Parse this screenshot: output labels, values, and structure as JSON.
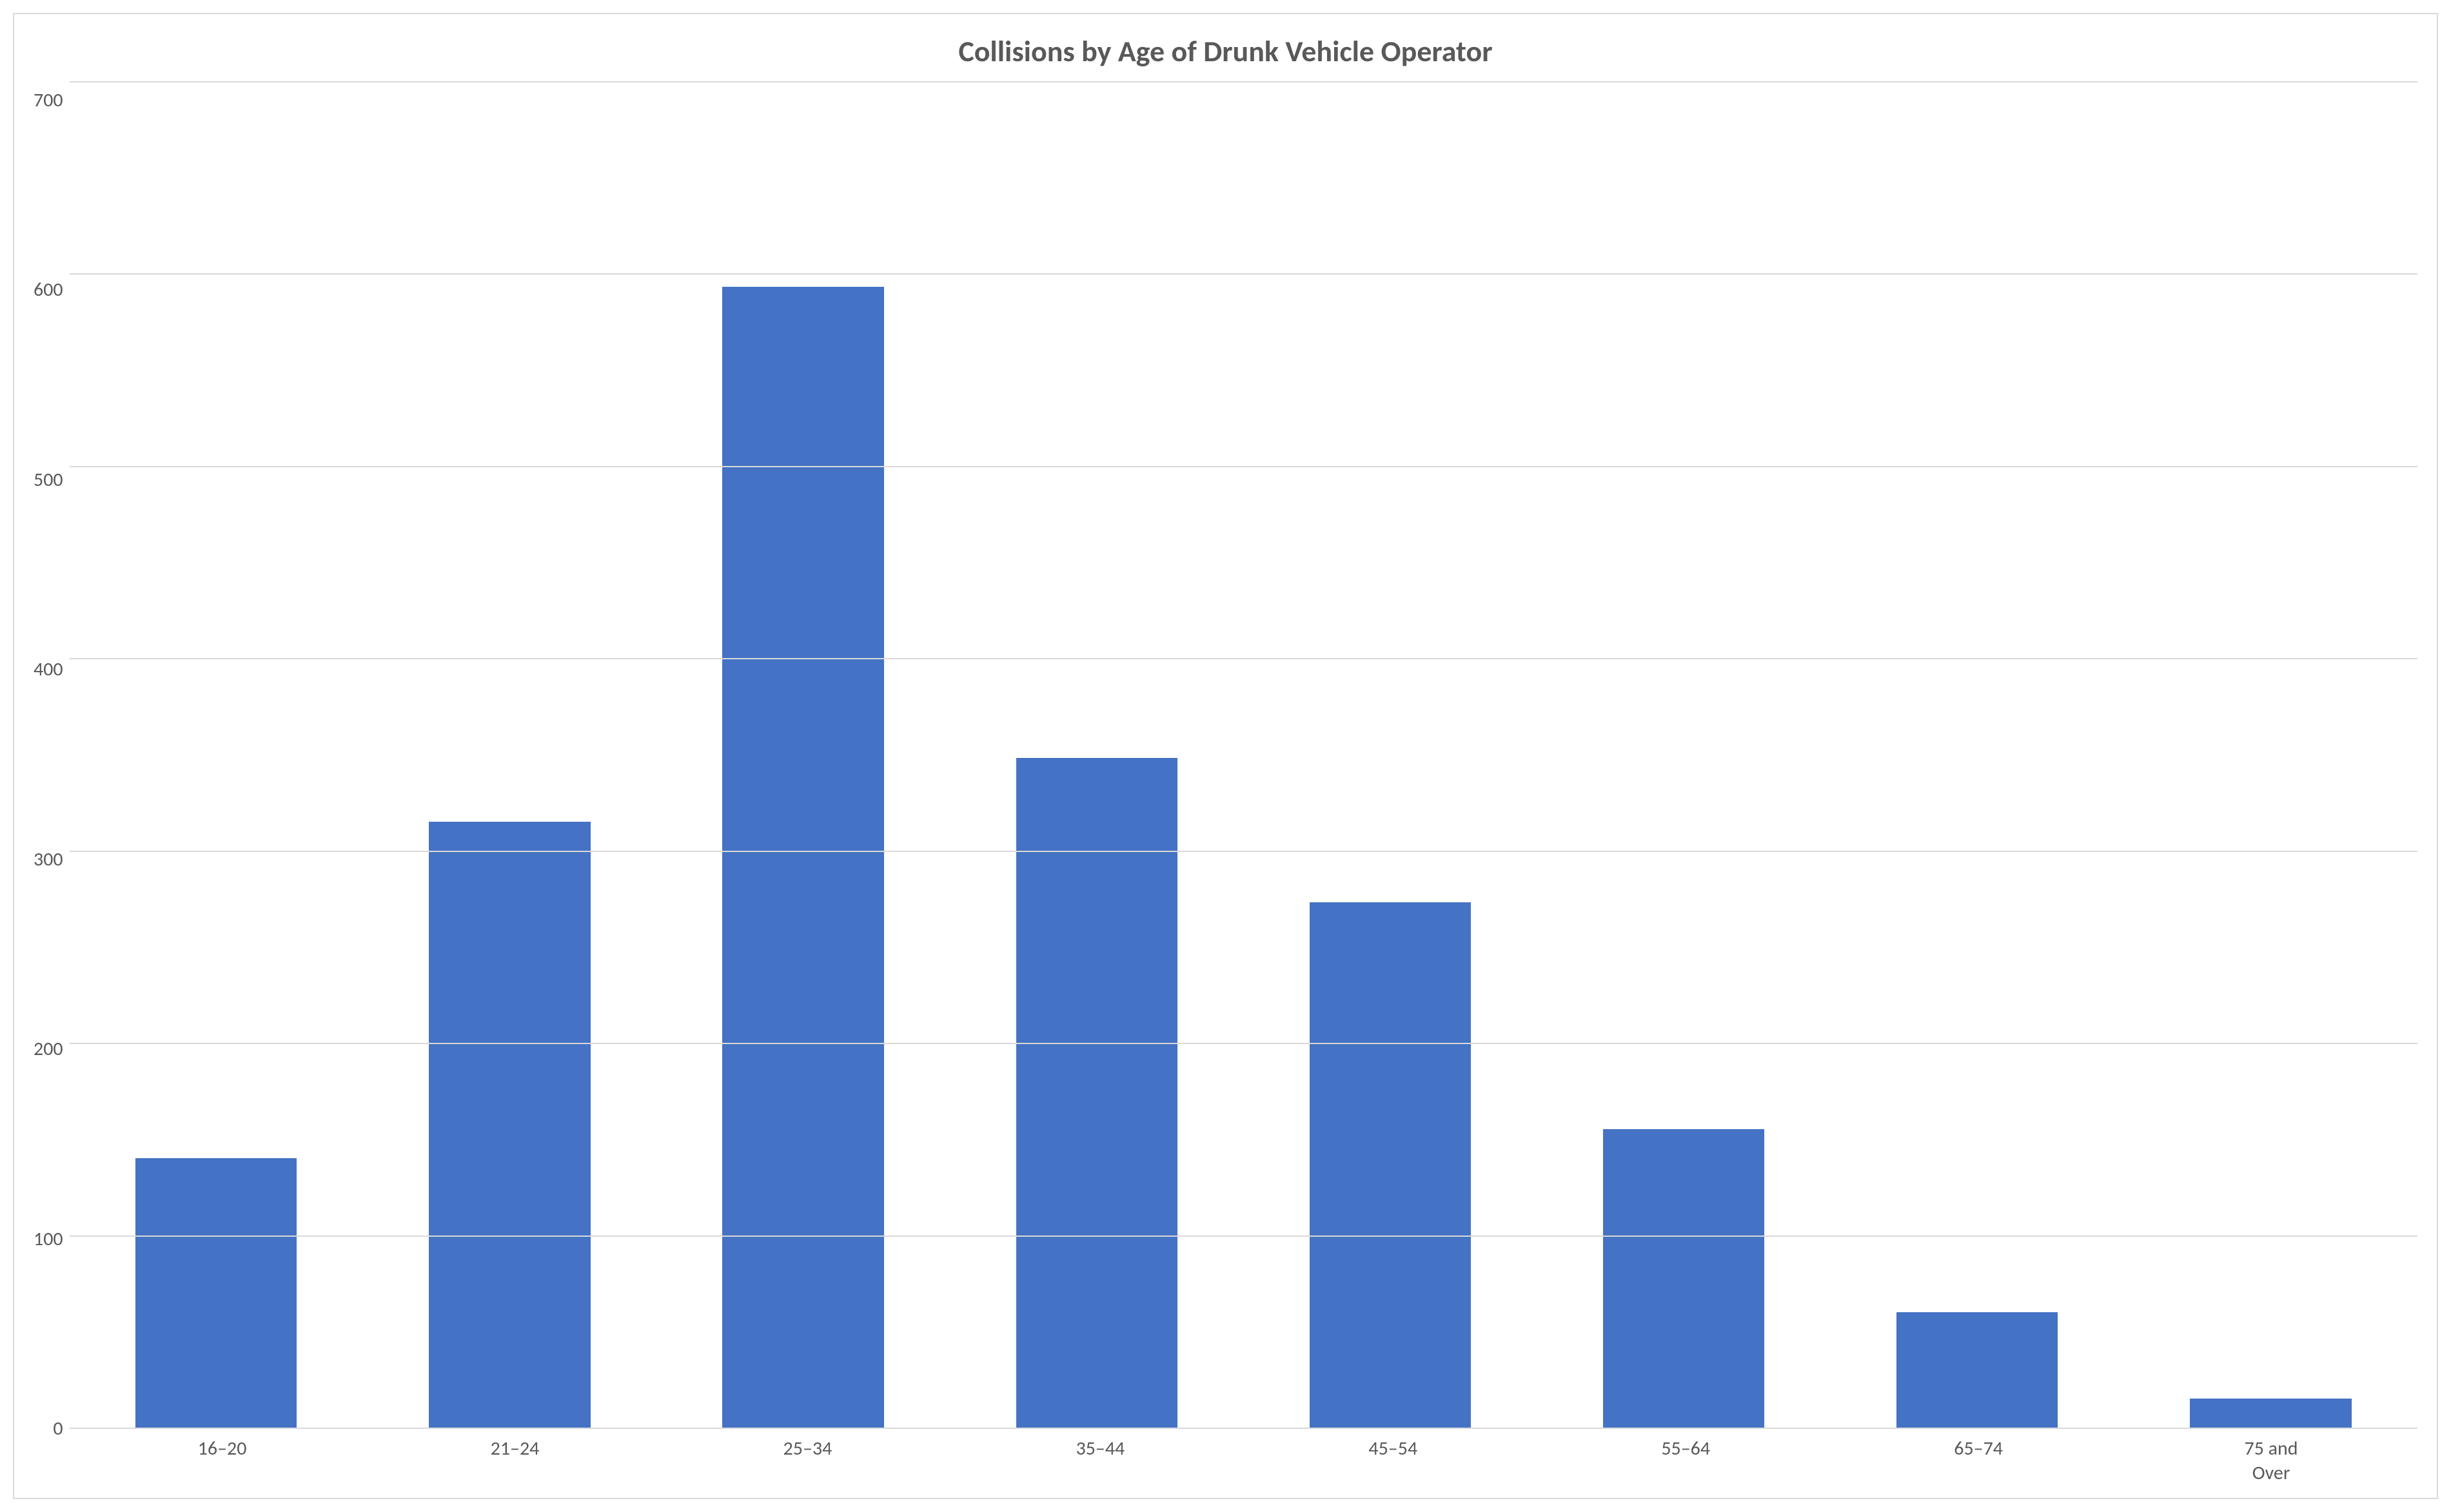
{
  "chart": {
    "type": "bar",
    "title": "Collisions by Age of Drunk Vehicle Operator",
    "title_fontsize": 46,
    "title_color": "#595959",
    "categories": [
      "16–20",
      "21–24",
      "25–34",
      "35–44",
      "45–54",
      "55–64",
      "65–74",
      "75 and\nOver"
    ],
    "values": [
      140,
      315,
      593,
      348,
      273,
      155,
      60,
      15
    ],
    "bar_color": "#4472c4",
    "bar_width": 0.55,
    "ylim": [
      0,
      700
    ],
    "ytick_step": 100,
    "yticks": [
      "700",
      "600",
      "500",
      "400",
      "300",
      "200",
      "100",
      "0"
    ],
    "axis_fontsize": 30,
    "axis_color": "#595959",
    "background_color": "#ffffff",
    "border_color": "#d9d9d9",
    "grid_color": "#d9d9d9"
  }
}
